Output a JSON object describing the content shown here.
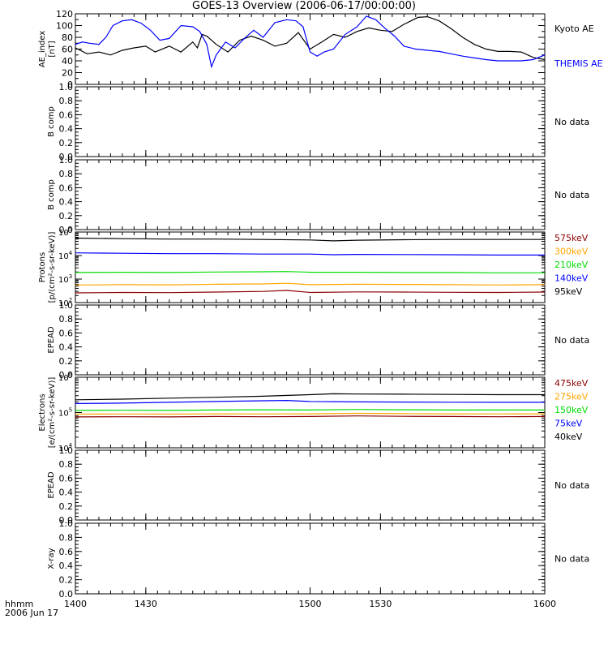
{
  "title": "GOES-13 Overview (2006-06-17/00:00:00)",
  "time_axis": {
    "range": [
      1400,
      1600
    ],
    "ticks": [
      "1400",
      "1430",
      "1500",
      "1530",
      "1600"
    ],
    "unit_label_1": "hhmm",
    "unit_label_2": "2006 Jun 17"
  },
  "chart_data": [
    {
      "id": "ae",
      "type": "line",
      "ylabel": [
        "AE_index",
        "[nT]"
      ],
      "ylim": [
        0,
        120
      ],
      "yticks": [
        0,
        20,
        40,
        60,
        80,
        100,
        120
      ],
      "series": [
        {
          "name": "Kyoto AE",
          "color": "#000000",
          "x": [
            1400,
            1405,
            1410,
            1415,
            1420,
            1425,
            1430,
            1434,
            1440,
            1445,
            1450,
            1452,
            1454,
            1456,
            1460,
            1465,
            1470,
            1475,
            1480,
            1485,
            1490,
            1495,
            1500,
            1505,
            1510,
            1515,
            1520,
            1525,
            1530,
            1535,
            1540,
            1543,
            1546,
            1550,
            1555,
            1560,
            1565,
            1570,
            1575,
            1580,
            1585,
            1590,
            1595,
            1600
          ],
          "y": [
            62,
            52,
            55,
            50,
            58,
            62,
            65,
            55,
            65,
            55,
            72,
            62,
            85,
            82,
            68,
            55,
            75,
            82,
            75,
            65,
            70,
            88,
            60,
            72,
            85,
            80,
            90,
            96,
            92,
            90,
            102,
            108,
            114,
            115,
            108,
            95,
            80,
            68,
            60,
            56,
            56,
            55,
            46,
            42
          ]
        },
        {
          "name": "THEMIS AE",
          "color": "#0000ff",
          "x": [
            1400,
            1403,
            1406,
            1410,
            1413,
            1416,
            1420,
            1424,
            1428,
            1432,
            1436,
            1440,
            1445,
            1450,
            1453,
            1456,
            1458,
            1460,
            1464,
            1468,
            1472,
            1476,
            1480,
            1485,
            1490,
            1494,
            1497,
            1500,
            1503,
            1506,
            1510,
            1515,
            1520,
            1524,
            1528,
            1532,
            1536,
            1540,
            1545,
            1550,
            1555,
            1560,
            1565,
            1570,
            1575,
            1580,
            1585,
            1590,
            1595,
            1600
          ],
          "y": [
            68,
            72,
            70,
            68,
            80,
            100,
            108,
            110,
            104,
            92,
            75,
            78,
            100,
            98,
            90,
            68,
            30,
            50,
            72,
            62,
            78,
            92,
            80,
            105,
            110,
            108,
            98,
            55,
            48,
            55,
            60,
            85,
            98,
            116,
            110,
            95,
            82,
            65,
            60,
            58,
            56,
            52,
            48,
            45,
            42,
            40,
            40,
            40,
            42,
            50
          ]
        }
      ],
      "legend": [
        {
          "text": "Kyoto AE",
          "color": "#000000"
        },
        {
          "text": "THEMIS AE",
          "color": "#0000ff"
        }
      ]
    },
    {
      "id": "bcomp1",
      "type": "line",
      "ylabel": [
        "B comp"
      ],
      "ylim": [
        0,
        1
      ],
      "yticks": [
        0.0,
        0.2,
        0.4,
        0.6,
        0.8,
        1.0
      ],
      "series": [],
      "legend": [
        {
          "text": "No data",
          "color": "#000000"
        }
      ]
    },
    {
      "id": "bcomp2",
      "type": "line",
      "ylabel": [
        "B comp"
      ],
      "ylim": [
        0,
        1
      ],
      "yticks": [
        0.0,
        0.2,
        0.4,
        0.6,
        0.8,
        1.0
      ],
      "series": [],
      "legend": [
        {
          "text": "No data",
          "color": "#000000"
        }
      ]
    },
    {
      "id": "protons",
      "type": "line",
      "log": true,
      "ylabel": [
        "Protons",
        "[p/(cm²-s-sr-keV)]"
      ],
      "ylim": [
        100,
        100000
      ],
      "ylog_range": [
        2,
        5
      ],
      "yticks_log": [
        2,
        3,
        4,
        5
      ],
      "series": [
        {
          "name": "575keV",
          "color": "#8b0000",
          "x": [
            1400,
            1420,
            1440,
            1460,
            1480,
            1490,
            1500,
            1520,
            1540,
            1560,
            1580,
            1600
          ],
          "y": [
            260,
            270,
            265,
            280,
            300,
            330,
            270,
            285,
            280,
            275,
            270,
            280
          ]
        },
        {
          "name": "300keV",
          "color": "#ffa500",
          "x": [
            1400,
            1420,
            1440,
            1460,
            1480,
            1490,
            1500,
            1520,
            1540,
            1560,
            1580,
            1600
          ],
          "y": [
            560,
            580,
            570,
            600,
            620,
            660,
            580,
            600,
            590,
            580,
            560,
            580
          ]
        },
        {
          "name": "210keV",
          "color": "#00dd00",
          "x": [
            1400,
            1420,
            1440,
            1460,
            1480,
            1490,
            1500,
            1520,
            1540,
            1560,
            1580,
            1600
          ],
          "y": [
            1900,
            1950,
            1900,
            2000,
            2050,
            2100,
            1950,
            1950,
            1900,
            1900,
            1850,
            1850
          ]
        },
        {
          "name": "140keV",
          "color": "#0000ff",
          "x": [
            1400,
            1420,
            1440,
            1460,
            1480,
            1500,
            1510,
            1520,
            1540,
            1560,
            1580,
            1600
          ],
          "y": [
            13000,
            12500,
            12000,
            12000,
            11500,
            11500,
            10800,
            11200,
            11000,
            10800,
            10500,
            10500
          ]
        },
        {
          "name": "95keV",
          "color": "#000000",
          "x": [
            1400,
            1420,
            1440,
            1460,
            1480,
            1500,
            1510,
            1520,
            1540,
            1560,
            1580,
            1600
          ],
          "y": [
            55000,
            52000,
            50000,
            50000,
            48000,
            46000,
            42000,
            45000,
            47000,
            48000,
            48000,
            48000
          ]
        }
      ],
      "legend": [
        {
          "text": "575keV",
          "color": "#8b0000"
        },
        {
          "text": "300keV",
          "color": "#ffa500"
        },
        {
          "text": "210keV",
          "color": "#00dd00"
        },
        {
          "text": "140keV",
          "color": "#0000ff"
        },
        {
          "text": "95keV",
          "color": "#000000"
        }
      ]
    },
    {
      "id": "epead1",
      "type": "line",
      "ylabel": [
        "EPEAD"
      ],
      "ylim": [
        0,
        1
      ],
      "yticks": [
        0.0,
        0.2,
        0.4,
        0.6,
        0.8,
        1.0
      ],
      "series": [],
      "legend": [
        {
          "text": "No data",
          "color": "#000000"
        }
      ]
    },
    {
      "id": "electrons",
      "type": "line",
      "log": true,
      "ylabel": [
        "Electrons",
        "[e/(cm²-s-sr-keV)]"
      ],
      "ylim": [
        10000,
        1000000
      ],
      "ylog_range": [
        4,
        6
      ],
      "yticks_log": [
        4,
        5,
        6
      ],
      "series": [
        {
          "name": "475keV",
          "color": "#8b0000",
          "x": [
            1400,
            1420,
            1440,
            1460,
            1480,
            1500,
            1520,
            1540,
            1560,
            1580,
            1600
          ],
          "y": [
            75000,
            76000,
            75000,
            77000,
            76000,
            77000,
            80000,
            78000,
            77000,
            76000,
            77000
          ]
        },
        {
          "name": "275keV",
          "color": "#ffa500",
          "x": [
            1400,
            1420,
            1440,
            1460,
            1480,
            1500,
            1520,
            1540,
            1560,
            1580,
            1600
          ],
          "y": [
            90000,
            91000,
            90000,
            92000,
            91000,
            92000,
            95000,
            93000,
            92000,
            91000,
            92000
          ]
        },
        {
          "name": "150keV",
          "color": "#00dd00",
          "x": [
            1400,
            1420,
            1440,
            1460,
            1480,
            1500,
            1520,
            1540,
            1560,
            1580,
            1600
          ],
          "y": [
            115000,
            116000,
            115000,
            118000,
            120000,
            118000,
            122000,
            120000,
            118000,
            118000,
            118000
          ]
        },
        {
          "name": "75keV",
          "color": "#0000ff",
          "x": [
            1400,
            1420,
            1440,
            1460,
            1480,
            1490,
            1500,
            1520,
            1540,
            1560,
            1580,
            1600
          ],
          "y": [
            180000,
            185000,
            195000,
            205000,
            215000,
            220000,
            205000,
            200000,
            198000,
            196000,
            195000,
            195000
          ]
        },
        {
          "name": "40keV",
          "color": "#000000",
          "x": [
            1400,
            1420,
            1440,
            1460,
            1480,
            1500,
            1510,
            1520,
            1540,
            1560,
            1580,
            1600
          ],
          "y": [
            230000,
            240000,
            255000,
            270000,
            290000,
            320000,
            340000,
            335000,
            330000,
            325000,
            320000,
            320000
          ]
        }
      ],
      "legend": [
        {
          "text": "475keV",
          "color": "#8b0000"
        },
        {
          "text": "275keV",
          "color": "#ffa500"
        },
        {
          "text": "150keV",
          "color": "#00dd00"
        },
        {
          "text": "75keV",
          "color": "#0000ff"
        },
        {
          "text": "40keV",
          "color": "#000000"
        }
      ]
    },
    {
      "id": "epead2",
      "type": "line",
      "ylabel": [
        "EPEAD"
      ],
      "ylim": [
        0,
        1
      ],
      "yticks": [
        0.0,
        0.2,
        0.4,
        0.6,
        0.8,
        1.0
      ],
      "series": [],
      "legend": [
        {
          "text": "No data",
          "color": "#000000"
        }
      ]
    },
    {
      "id": "xray",
      "type": "line",
      "ylabel": [
        "X-ray"
      ],
      "ylim": [
        0,
        1
      ],
      "yticks": [
        0.0,
        0.2,
        0.4,
        0.6,
        0.8,
        1.0
      ],
      "series": [],
      "legend": [
        {
          "text": "No data",
          "color": "#000000"
        }
      ]
    }
  ]
}
